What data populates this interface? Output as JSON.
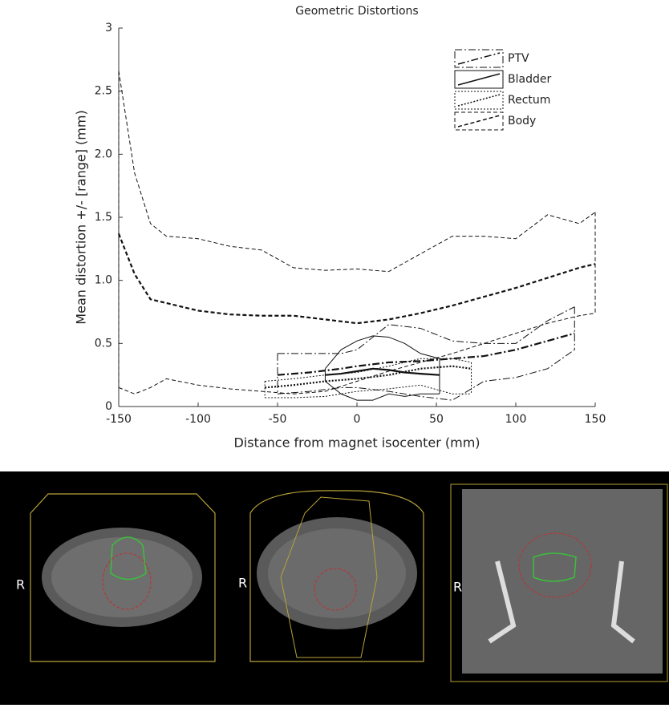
{
  "chart_data": {
    "type": "line",
    "title": "Geometric Distortions",
    "xlabel": "Distance from magnet isocenter (mm)",
    "ylabel": "Mean distortion +/- [range] (mm)",
    "xlim": [
      -150,
      150
    ],
    "xticks": [
      -150,
      -100,
      -50,
      0,
      50,
      100,
      150
    ],
    "ylim": [
      0,
      3
    ],
    "yticks": [
      0,
      0.5,
      {
        "value": 1,
        "label": "1.0"
      },
      1.5,
      {
        "value": 2,
        "label": "2.0"
      },
      2.5,
      3
    ],
    "legend": "top-right",
    "series": [
      {
        "name": "PTV",
        "color": "#111111",
        "dash": "9 3 2 3",
        "x": [
          -50,
          -30,
          -10,
          0,
          20,
          40,
          60,
          80,
          100,
          120,
          137
        ],
        "values": [
          0.25,
          0.27,
          0.3,
          0.32,
          0.35,
          0.36,
          0.38,
          0.4,
          0.45,
          0.52,
          0.58
        ],
        "upper": [
          0.42,
          0.42,
          0.42,
          0.45,
          0.65,
          0.62,
          0.52,
          0.5,
          0.5,
          0.68,
          0.79
        ],
        "lower": [
          0.1,
          0.12,
          0.15,
          0.15,
          0.12,
          0.08,
          0.05,
          0.2,
          0.23,
          0.3,
          0.45
        ]
      },
      {
        "name": "Bladder",
        "color": "#111111",
        "dash": "none",
        "x": [
          -20,
          -10,
          0,
          10,
          20,
          30,
          40,
          52
        ],
        "values": [
          0.25,
          0.26,
          0.28,
          0.3,
          0.29,
          0.27,
          0.26,
          0.25
        ],
        "upper": [
          0.3,
          0.45,
          0.52,
          0.56,
          0.55,
          0.5,
          0.42,
          0.38
        ],
        "lower": [
          0.2,
          0.1,
          0.05,
          0.05,
          0.1,
          0.08,
          0.1,
          0.1
        ]
      },
      {
        "name": "Rectum",
        "color": "#111111",
        "dash": "2 2",
        "x": [
          -58,
          -40,
          -20,
          0,
          20,
          40,
          60,
          72
        ],
        "values": [
          0.15,
          0.17,
          0.2,
          0.22,
          0.25,
          0.3,
          0.32,
          0.3
        ],
        "upper": [
          0.2,
          0.22,
          0.25,
          0.27,
          0.32,
          0.38,
          0.38,
          0.35
        ],
        "lower": [
          0.07,
          0.07,
          0.08,
          0.12,
          0.14,
          0.17,
          0.1,
          0.1
        ]
      },
      {
        "name": "Body",
        "color": "#111111",
        "dash": "5 3",
        "x": [
          -150,
          -140,
          -130,
          -120,
          -100,
          -80,
          -60,
          -40,
          -20,
          0,
          20,
          40,
          60,
          80,
          100,
          120,
          140,
          150
        ],
        "values": [
          1.37,
          1.05,
          0.85,
          0.82,
          0.76,
          0.73,
          0.72,
          0.72,
          0.69,
          0.66,
          0.69,
          0.74,
          0.8,
          0.87,
          0.94,
          1.02,
          1.1,
          1.13
        ],
        "upper": [
          2.66,
          1.85,
          1.45,
          1.35,
          1.33,
          1.27,
          1.24,
          1.1,
          1.08,
          1.09,
          1.07,
          1.21,
          1.35,
          1.35,
          1.33,
          1.52,
          1.45,
          1.54
        ],
        "lower": [
          0.15,
          0.1,
          0.15,
          0.22,
          0.17,
          0.14,
          0.12,
          0.1,
          0.12,
          0.2,
          0.28,
          0.35,
          0.42,
          0.5,
          0.58,
          0.66,
          0.72,
          0.74
        ]
      }
    ]
  },
  "image_labels": [
    "R",
    "R",
    "R"
  ]
}
